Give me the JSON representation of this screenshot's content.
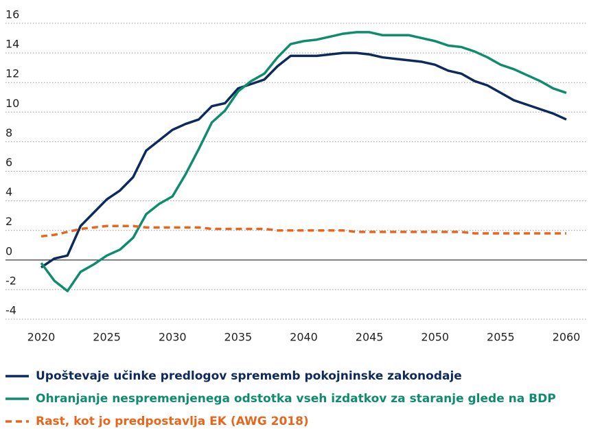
{
  "chart_data": {
    "type": "line",
    "x": [
      2020,
      2021,
      2022,
      2023,
      2024,
      2025,
      2026,
      2027,
      2028,
      2029,
      2030,
      2031,
      2032,
      2033,
      2034,
      2035,
      2036,
      2037,
      2038,
      2039,
      2040,
      2041,
      2042,
      2043,
      2044,
      2045,
      2046,
      2047,
      2048,
      2049,
      2050,
      2051,
      2052,
      2053,
      2054,
      2055,
      2056,
      2057,
      2058,
      2059,
      2060
    ],
    "series": [
      {
        "name": "Upoštevaje učinke predlogov sprememb pokojninske zakonodaje",
        "color": "#0d2a5c",
        "dash": false,
        "values": [
          -0.5,
          0.1,
          0.3,
          2.3,
          3.2,
          4.1,
          4.7,
          5.6,
          7.4,
          8.1,
          8.8,
          9.2,
          9.5,
          10.4,
          10.6,
          11.6,
          11.9,
          12.2,
          13.1,
          13.8,
          13.8,
          13.8,
          13.9,
          14.0,
          14.0,
          13.9,
          13.7,
          13.6,
          13.5,
          13.4,
          13.2,
          12.8,
          12.6,
          12.1,
          11.8,
          11.3,
          10.8,
          10.5,
          10.2,
          9.9,
          9.5
        ]
      },
      {
        "name": "Ohranjanje nespremenjenega odstotka vseh izdatkov za staranje glede na BDP",
        "color": "#0f8c6e",
        "dash": false,
        "values": [
          -0.2,
          -1.4,
          -2.1,
          -0.8,
          -0.3,
          0.3,
          0.7,
          1.5,
          3.1,
          3.8,
          4.3,
          5.8,
          7.5,
          9.3,
          10.1,
          11.4,
          12.1,
          12.6,
          13.7,
          14.6,
          14.8,
          14.9,
          15.1,
          15.3,
          15.4,
          15.4,
          15.2,
          15.2,
          15.2,
          15.0,
          14.8,
          14.5,
          14.4,
          14.1,
          13.7,
          13.2,
          12.9,
          12.5,
          12.1,
          11.6,
          11.3
        ]
      },
      {
        "name": "Rast, kot jo predpostavlja EK (AWG 2018)",
        "color": "#e8661c",
        "dash": true,
        "values": [
          1.6,
          1.7,
          1.9,
          2.1,
          2.2,
          2.3,
          2.3,
          2.3,
          2.2,
          2.2,
          2.2,
          2.2,
          2.2,
          2.1,
          2.1,
          2.1,
          2.1,
          2.1,
          2.0,
          2.0,
          2.0,
          2.0,
          2.0,
          2.0,
          1.9,
          1.9,
          1.9,
          1.9,
          1.9,
          1.9,
          1.9,
          1.9,
          1.9,
          1.8,
          1.8,
          1.8,
          1.8,
          1.8,
          1.8,
          1.8,
          1.8
        ]
      }
    ],
    "xlim": [
      2020,
      2060
    ],
    "xticks": [
      2020,
      2025,
      2030,
      2035,
      2040,
      2045,
      2050,
      2055,
      2060
    ],
    "ylim": [
      -4,
      16
    ],
    "yticks": [
      -4,
      -2,
      0,
      2,
      4,
      6,
      8,
      10,
      12,
      14,
      16
    ],
    "grid": true
  }
}
